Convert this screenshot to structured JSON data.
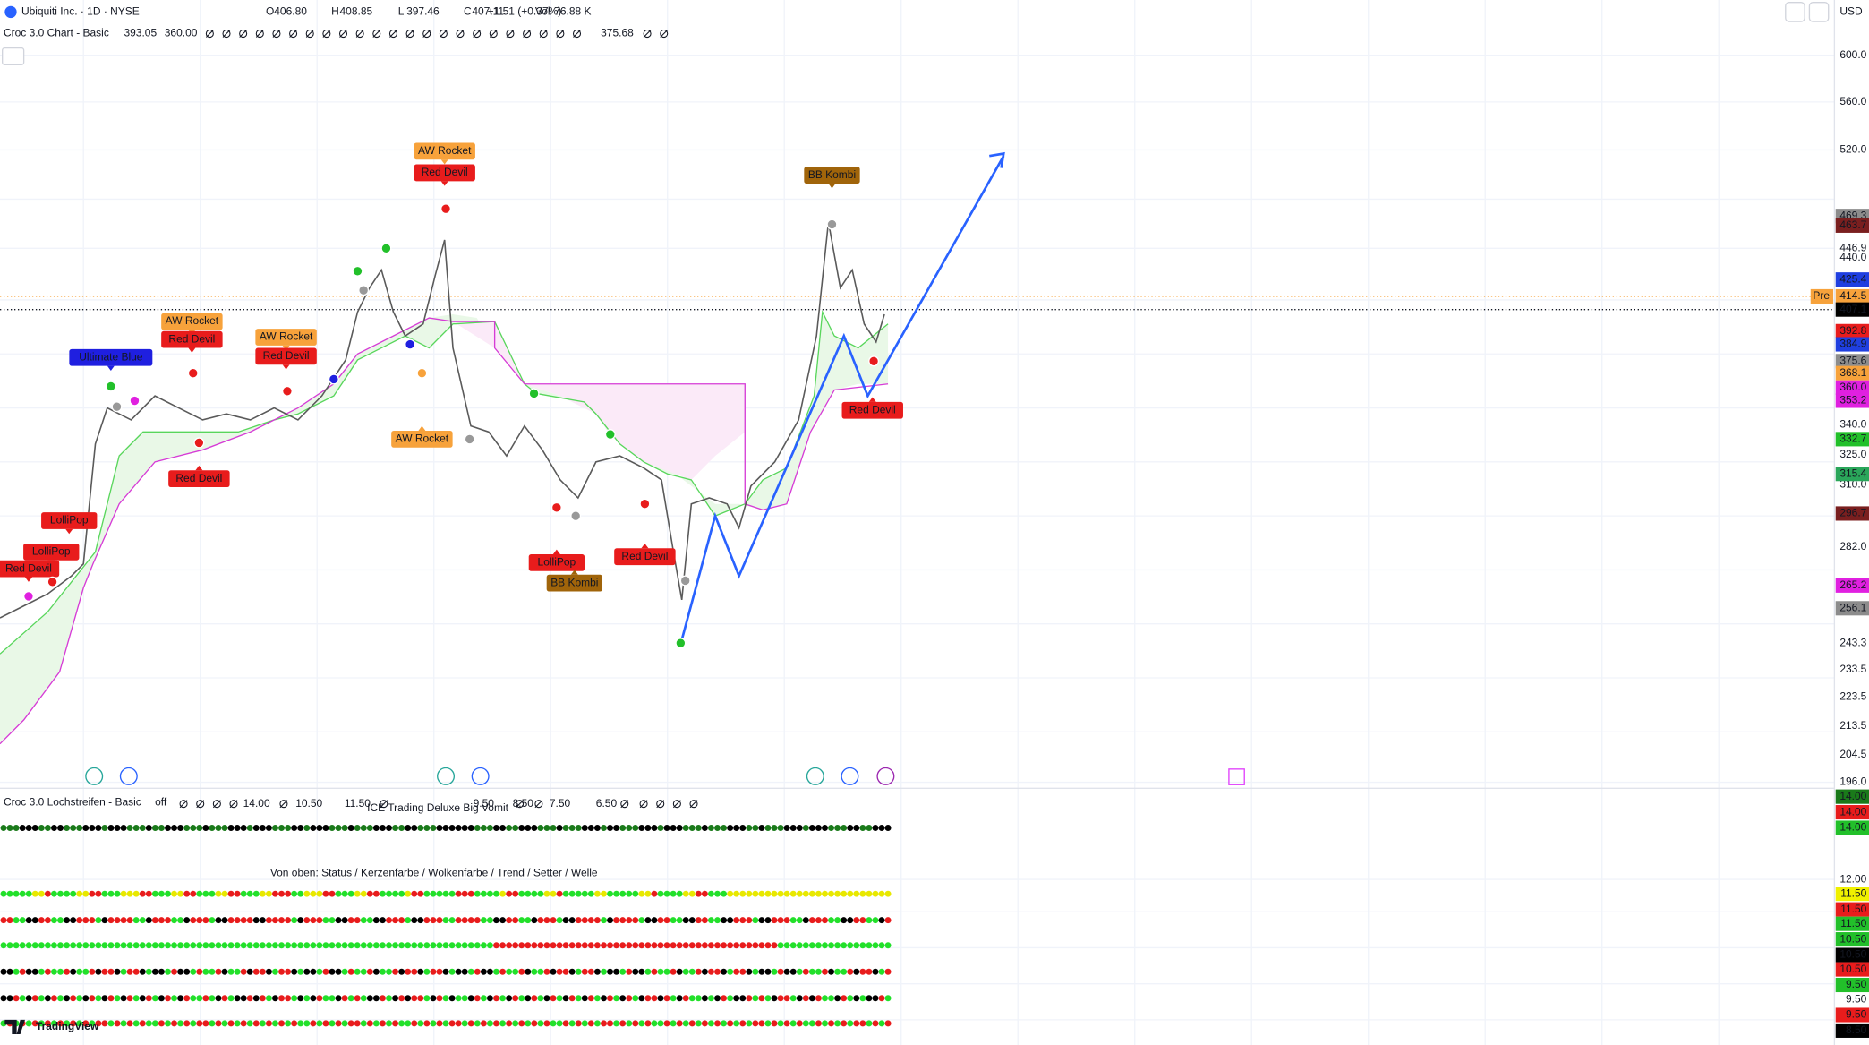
{
  "header": {
    "symbol": "Ubiquiti Inc. · 1D · NYSE",
    "ohlc": [
      {
        "label": "O",
        "value": "406.80"
      },
      {
        "label": "H",
        "value": "408.85"
      },
      {
        "label": "L",
        "value": "397.46"
      },
      {
        "label": "C",
        "value": "407.11"
      }
    ],
    "change": "+1.51 (+0.37%)",
    "volume_label": "Vol",
    "volume": "76.88 K",
    "currency": "USD"
  },
  "indicator": {
    "name": "Croc 3.0 Chart - Basic",
    "values": [
      "393.05",
      "360.00"
    ],
    "extra": "375.68"
  },
  "price_axis": {
    "ticks": [
      "600.0",
      "560.0",
      "520.0",
      "446.9",
      "440.0",
      "340.0",
      "325.0",
      "310.0",
      "282.0",
      "243.3",
      "233.5",
      "223.5",
      "213.5",
      "204.5",
      "196.0"
    ],
    "badges": [
      {
        "text": "469.3",
        "color": "#8c8c8c"
      },
      {
        "text": "463.7",
        "color": "#7a1f1f"
      },
      {
        "text": "425.4",
        "color": "#1f3fe0"
      },
      {
        "text": "414.5",
        "color": "#f7a23b"
      },
      {
        "text": "407.1",
        "color": "#000000"
      },
      {
        "text": "392.8",
        "color": "#e81c1c"
      },
      {
        "text": "384.9",
        "color": "#1f3fe0"
      },
      {
        "text": "375.6",
        "color": "#8c8c8c"
      },
      {
        "text": "368.1",
        "color": "#f7a23b"
      },
      {
        "text": "360.0",
        "color": "#e020e0"
      },
      {
        "text": "353.2",
        "color": "#e020e0"
      },
      {
        "text": "332.7",
        "color": "#22c02a"
      },
      {
        "text": "315.4",
        "color": "#2aa65a"
      },
      {
        "text": "296.7",
        "color": "#7a1f1f"
      },
      {
        "text": "265.2",
        "color": "#e020e0"
      },
      {
        "text": "256.1",
        "color": "#8c8c8c"
      }
    ],
    "pre": "Pre"
  },
  "signals": [
    {
      "text": "AW Rocket",
      "color": "#f7a23b"
    },
    {
      "text": "Red Devil",
      "color": "#e81c1c"
    },
    {
      "text": "BB Kombi",
      "color": "#a0640a"
    },
    {
      "text": "AW Rocket",
      "color": "#f7a23b"
    },
    {
      "text": "Red Devil",
      "color": "#e81c1c"
    },
    {
      "text": "AW Rocket",
      "color": "#f7a23b"
    },
    {
      "text": "Red Devil",
      "color": "#e81c1c"
    },
    {
      "text": "Ultimate Blue",
      "color": "#1f1fe0"
    },
    {
      "text": "Red Devil",
      "color": "#e81c1c"
    },
    {
      "text": "AW Rocket",
      "color": "#f7a23b"
    },
    {
      "text": "Red Devil",
      "color": "#e81c1c"
    },
    {
      "text": "LolliPop",
      "color": "#e81c1c"
    },
    {
      "text": "LolliPop",
      "color": "#e81c1c"
    },
    {
      "text": "Red Devil",
      "color": "#e81c1c"
    },
    {
      "text": "LolliPop",
      "color": "#e81c1c"
    },
    {
      "text": "Red Devil",
      "color": "#e81c1c"
    },
    {
      "text": "BB Kombi",
      "color": "#a0640a"
    }
  ],
  "lower_panel": {
    "name": "Croc 3.0 Lochstreifen - Basic",
    "state": "off",
    "values": [
      {
        "text": "14.00",
        "color": "#131722"
      },
      {
        "text": "10.50",
        "color": "#131722"
      },
      {
        "text": "11.50",
        "color": "#e8e800"
      },
      {
        "text": "9.50",
        "color": "#e8b800"
      },
      {
        "text": "8.50",
        "color": "#131722"
      },
      {
        "text": "7.50",
        "color": "#e81c1c"
      },
      {
        "text": "6.50",
        "color": "#22c02a"
      }
    ],
    "overlay": "ICE Trading Deluxe Big Vomit",
    "legend": "Von oben: Status / Kerzenfarbe / Wolkenfarbe / Trend / Setter / Welle",
    "axis": [
      {
        "text": "14.00",
        "color": "#1a7a1a"
      },
      {
        "text": "14.00",
        "color": "#e81c1c"
      },
      {
        "text": "14.00",
        "color": "#22c02a"
      },
      {
        "text": "12.00",
        "color": ""
      },
      {
        "text": "11.50",
        "color": "#f0f000"
      },
      {
        "text": "11.50",
        "color": "#e81c1c"
      },
      {
        "text": "11.50",
        "color": "#22c02a"
      },
      {
        "text": "10.50",
        "color": "#22c02a"
      },
      {
        "text": "10.50",
        "color": "#000000"
      },
      {
        "text": "10.50",
        "color": "#e81c1c"
      },
      {
        "text": "9.50",
        "color": "#22c02a"
      },
      {
        "text": "9.50",
        "color": ""
      },
      {
        "text": "9.50",
        "color": "#e81c1c"
      },
      {
        "text": "8.50",
        "color": "#000000"
      }
    ]
  },
  "brand": "TradingView"
}
